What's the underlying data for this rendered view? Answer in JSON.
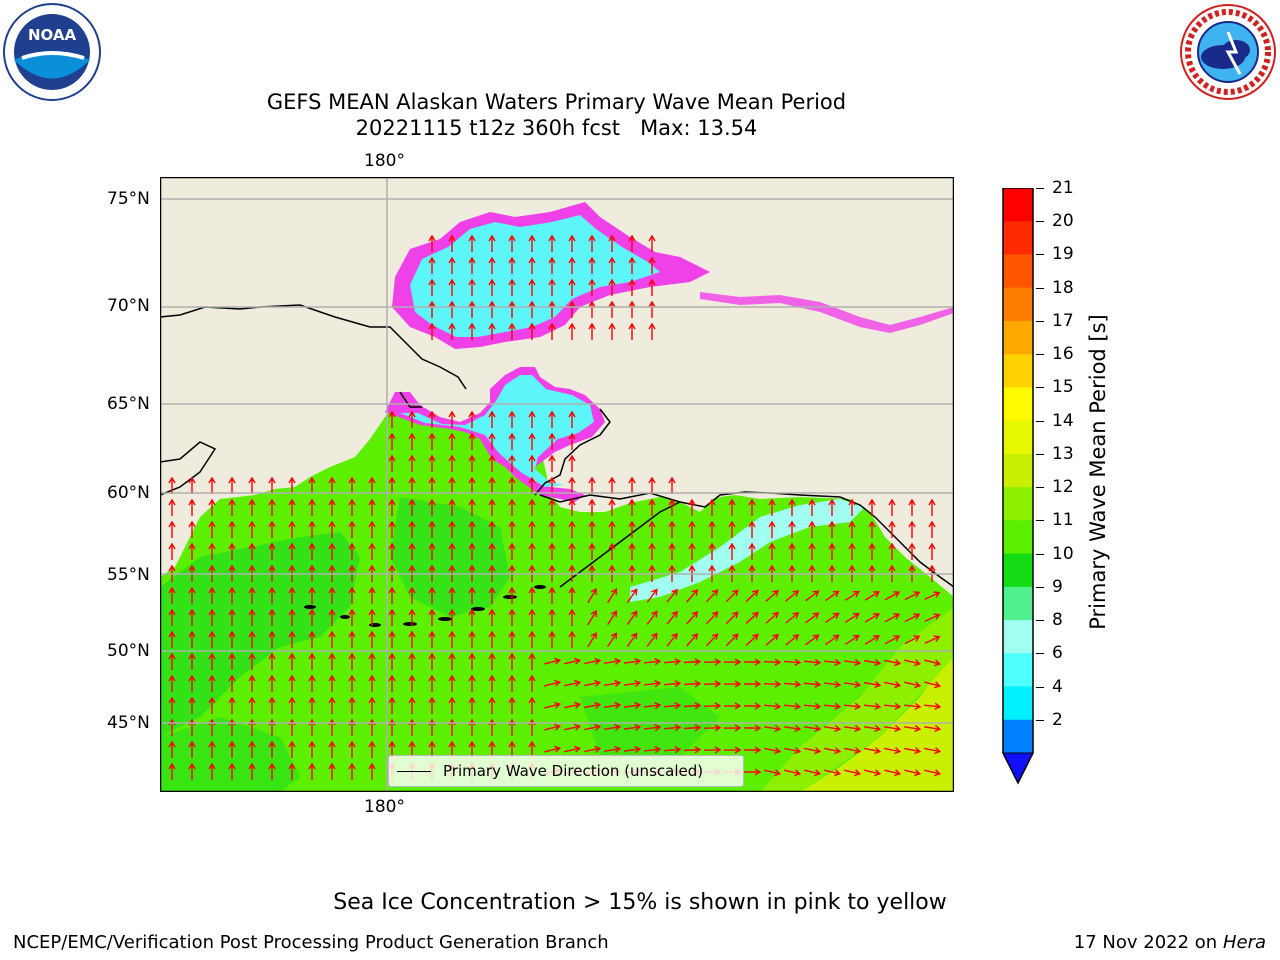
{
  "header": {
    "title_line1": "GEFS MEAN Alaskan Waters Primary Wave Mean Period",
    "title_line2": "20221115 t12z 360h fcst   Max: 13.54"
  },
  "logos": {
    "left": {
      "icon": "noaa-logo-icon",
      "text": "NOAA"
    },
    "right": {
      "icon": "nws-logo-icon",
      "text": "NATIONAL WEATHER SERVICE"
    }
  },
  "map": {
    "lon_label_top": "180°",
    "lon_label_bottom": "180°",
    "lat_labels": [
      "75°N",
      "70°N",
      "65°N",
      "60°N",
      "55°N",
      "50°N",
      "45°N"
    ],
    "legend_text": "Primary Wave Direction (unscaled)",
    "colors": {
      "land": "#efecdd",
      "ocean_main": "#5cf000",
      "ocean_dark": "#2ee01a",
      "ice_core": "#5cf5f8",
      "ice_edge": "#f040e8",
      "arrow": "#ff0000",
      "grid": "#b0b0b0"
    }
  },
  "colorbar": {
    "label": "Primary Wave Mean Period [s]",
    "ticks": [
      "21",
      "20",
      "19",
      "18",
      "17",
      "16",
      "15",
      "14",
      "13",
      "12",
      "11",
      "10",
      "9",
      "8",
      "6",
      "4",
      "2"
    ],
    "colors": [
      "#ff0000",
      "#ff2a00",
      "#ff5400",
      "#ff7e00",
      "#ffa800",
      "#ffd200",
      "#fffa00",
      "#e8f800",
      "#c8f000",
      "#8cf000",
      "#5cf000",
      "#14dc14",
      "#50f08c",
      "#a0fff0",
      "#50ffff",
      "#00f0ff",
      "#0080ff"
    ],
    "extend_color": "#1010ff"
  },
  "notes": {
    "ice_note": "Sea Ice Concentration > 15% is shown in pink to yellow",
    "footer_left": "NCEP/EMC/Verification Post Processing Product Generation Branch",
    "footer_date": "17 Nov 2022 on",
    "footer_machine": "Hera"
  }
}
